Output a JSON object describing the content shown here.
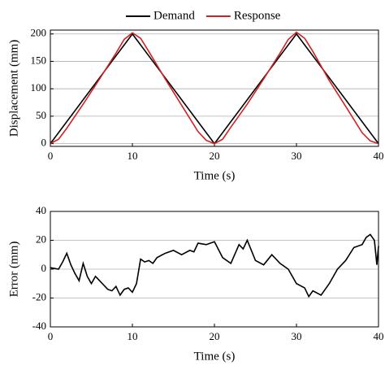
{
  "chart_data": [
    {
      "type": "line",
      "x": [
        0,
        1,
        2,
        4,
        6,
        8,
        9,
        10,
        11,
        12,
        14,
        16,
        18,
        19,
        20,
        21,
        22,
        24,
        26,
        28,
        29,
        30,
        31,
        32,
        34,
        36,
        38,
        39,
        40
      ],
      "series": [
        {
          "name": "Demand",
          "color": "#000000",
          "values": [
            0,
            20,
            40,
            80,
            120,
            160,
            180,
            200,
            180,
            160,
            120,
            80,
            40,
            20,
            0,
            20,
            40,
            80,
            120,
            160,
            180,
            200,
            180,
            160,
            120,
            80,
            40,
            20,
            0
          ]
        },
        {
          "name": "Response",
          "color": "#d42020",
          "values": [
            0,
            8,
            28,
            72,
            118,
            165,
            190,
            202,
            192,
            168,
            118,
            70,
            22,
            6,
            0,
            8,
            30,
            72,
            118,
            165,
            190,
            203,
            192,
            168,
            115,
            68,
            20,
            5,
            0
          ]
        }
      ],
      "xlim": [
        0,
        40
      ],
      "xticks": [
        0,
        10,
        20,
        30,
        40
      ],
      "ylim": [
        -5,
        207
      ],
      "yticks": [
        0,
        50,
        100,
        150,
        200
      ],
      "xlabel": "Time (s)",
      "ylabel": "Displacement (mm)",
      "grid": true,
      "legend": "top"
    },
    {
      "type": "line",
      "x": [
        0,
        1,
        1.5,
        2,
        2.5,
        3,
        3.5,
        4,
        4.5,
        5,
        5.5,
        6,
        7,
        7.5,
        8,
        8.5,
        9,
        9.5,
        10,
        10.5,
        11,
        11.5,
        12,
        12.5,
        13,
        14,
        15,
        16,
        17,
        17.5,
        18,
        19,
        20,
        21,
        22,
        23,
        23.5,
        24,
        25,
        26,
        27,
        28,
        29,
        30,
        31,
        31.5,
        32,
        33,
        34,
        35,
        36,
        37,
        38,
        38.5,
        39,
        39.5,
        39.8,
        40
      ],
      "series": [
        {
          "color": "#000000",
          "values": [
            1,
            0,
            5,
            11,
            3,
            -3,
            -8,
            4,
            -5,
            -10,
            -5,
            -8,
            -14,
            -15,
            -12,
            -18,
            -14,
            -13,
            -16,
            -10,
            7,
            5,
            6,
            4,
            8,
            11,
            13,
            10,
            13,
            12,
            18,
            17,
            19,
            8,
            4,
            17,
            14,
            20,
            6,
            3,
            10,
            4,
            0,
            -10,
            -13,
            -19,
            -15,
            -18,
            -10,
            0,
            6,
            15,
            17,
            22,
            24,
            20,
            3,
            16
          ]
        }
      ],
      "xlim": [
        0,
        40
      ],
      "xticks": [
        0,
        10,
        20,
        30,
        40
      ],
      "ylim": [
        -40,
        40
      ],
      "yticks": [
        -40,
        -20,
        0,
        20,
        40
      ],
      "xlabel": "Time (s)",
      "ylabel": "Error (mm)",
      "grid": true
    }
  ]
}
